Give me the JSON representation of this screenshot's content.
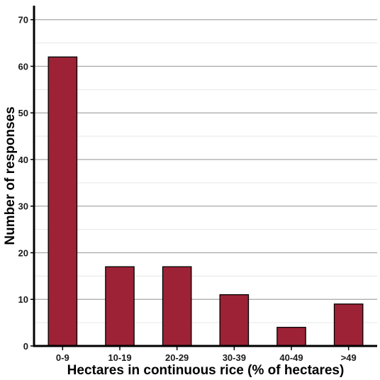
{
  "chart_data": {
    "type": "bar",
    "title": "",
    "xlabel": "Hectares in continuous rice (% of hectares)",
    "ylabel": "Number of responses",
    "categories": [
      "0-9",
      "10-19",
      "20-29",
      "30-39",
      "40-49",
      ">49"
    ],
    "values": [
      62,
      17,
      17,
      11,
      4,
      9
    ],
    "ylim": [
      0,
      73
    ],
    "yticks": [
      0,
      10,
      20,
      30,
      40,
      50,
      60,
      70
    ],
    "grid": true,
    "legend": "none",
    "colors": {
      "bar_fill": "#9d2235",
      "bar_stroke": "#000000",
      "grid_major": "#a6a6a6",
      "grid_minor": "#e6e6e6",
      "axis": "#000000"
    }
  }
}
